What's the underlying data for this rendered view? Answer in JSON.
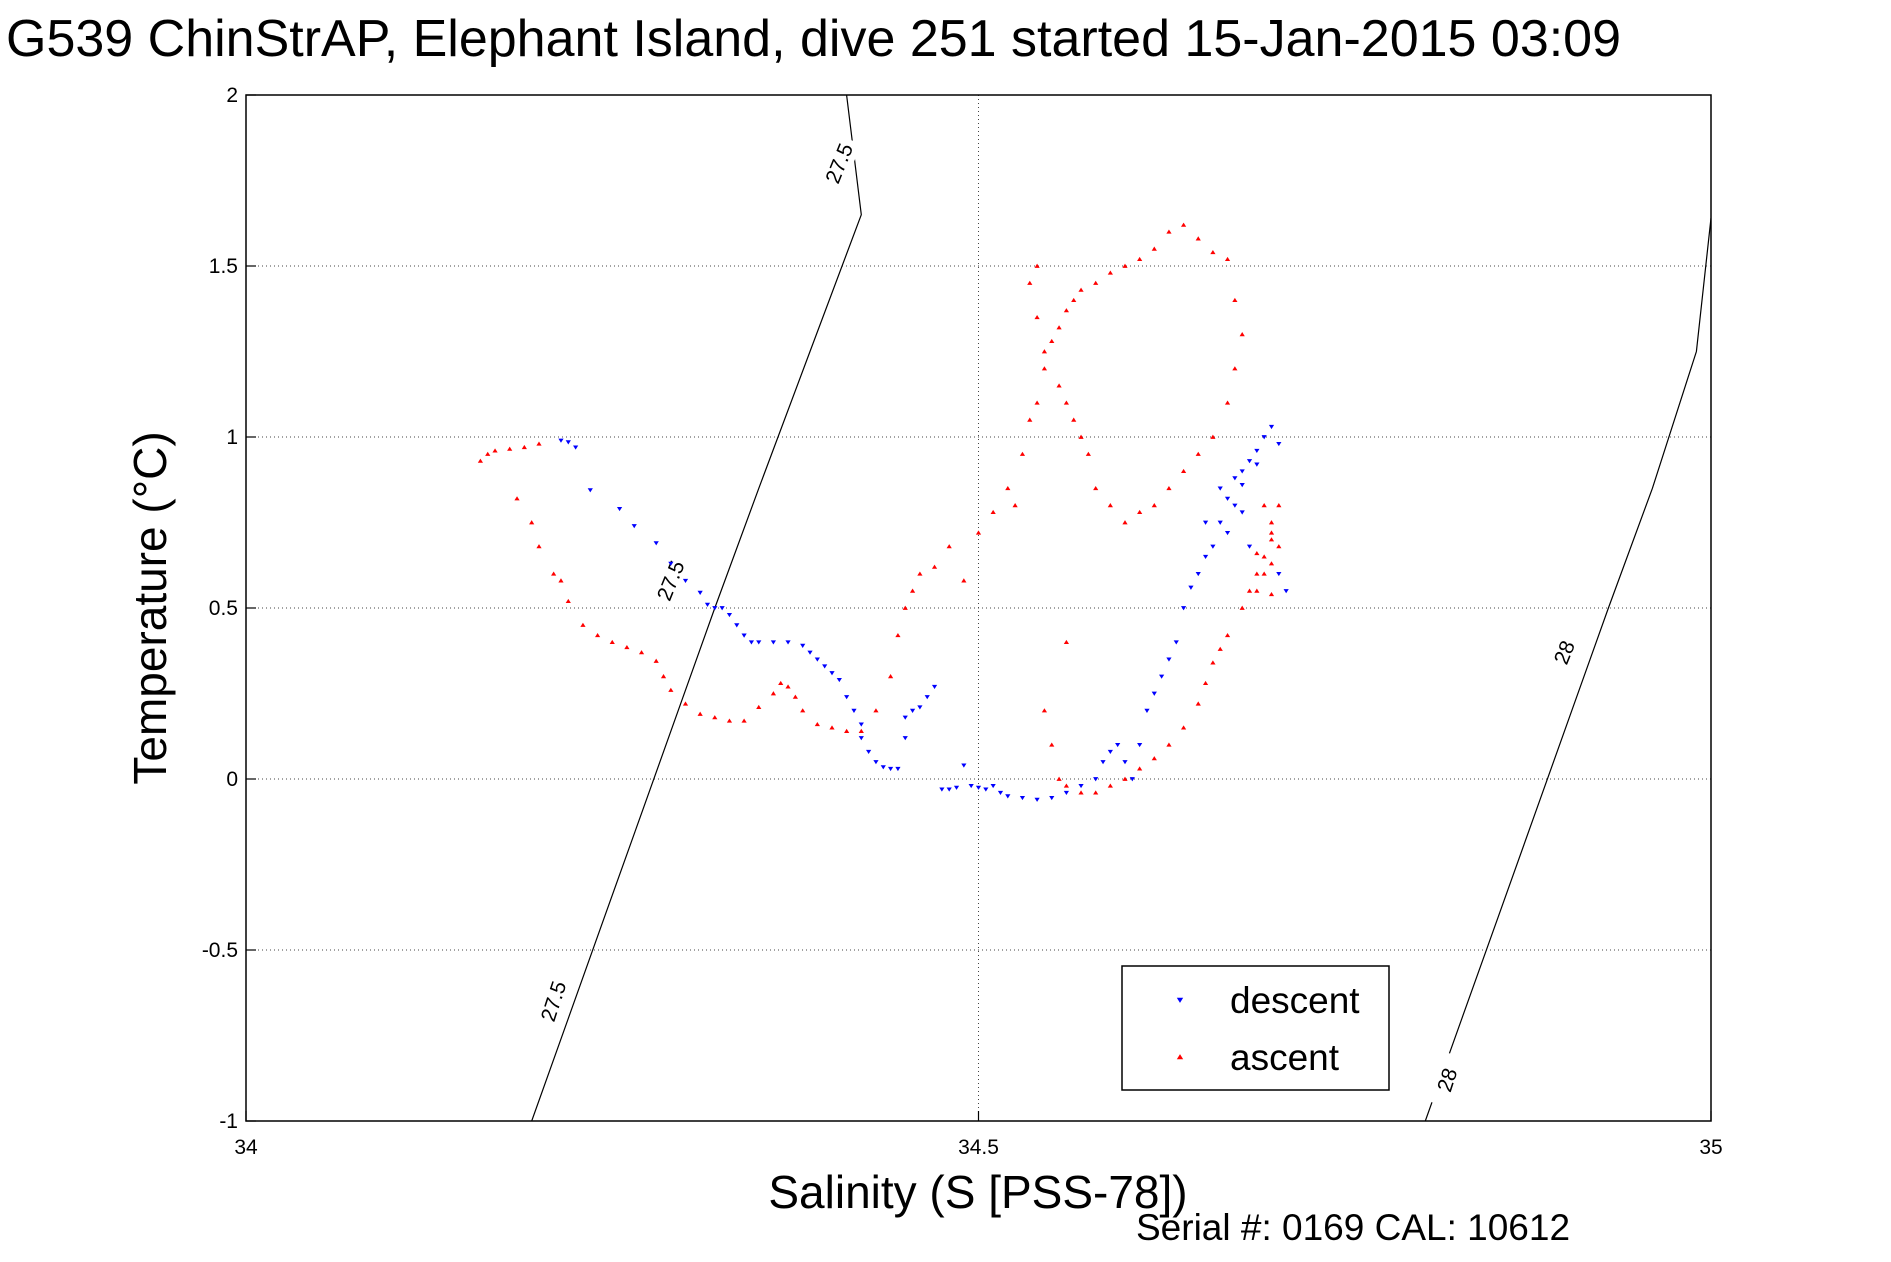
{
  "chart_data": {
    "type": "scatter",
    "title": "G539 ChinStrAP, Elephant Island, dive 251 started 15-Jan-2015 03:09",
    "xlabel": "Salinity (S [PSS-78])",
    "ylabel": "Temperature (°C)",
    "xlim": [
      34,
      35
    ],
    "ylim": [
      -1,
      2
    ],
    "xticks": [
      "34",
      "34.5",
      "35"
    ],
    "yticks": [
      "-1",
      "-0.5",
      "0",
      "0.5",
      "1",
      "1.5",
      "2"
    ],
    "grid": true,
    "legend_position": "bottom-right",
    "footer": "Serial #: 0169 CAL: 10612",
    "density_contours": [
      {
        "label": "27.5",
        "points": [
          [
            34.195,
            -1.0
          ],
          [
            34.22,
            -0.7
          ],
          [
            34.245,
            -0.4
          ],
          [
            34.27,
            -0.1
          ],
          [
            34.295,
            0.2
          ],
          [
            34.32,
            0.5
          ],
          [
            34.35,
            0.85
          ],
          [
            34.385,
            1.25
          ],
          [
            34.42,
            1.65
          ],
          [
            34.41,
            2.0
          ]
        ]
      },
      {
        "label": "28",
        "points": [
          [
            34.805,
            -1.0
          ],
          [
            34.83,
            -0.7
          ],
          [
            34.855,
            -0.4
          ],
          [
            34.88,
            -0.1
          ],
          [
            34.905,
            0.2
          ],
          [
            34.93,
            0.5
          ],
          [
            34.96,
            0.85
          ],
          [
            34.99,
            1.25
          ],
          [
            35.0,
            1.64
          ]
        ]
      }
    ],
    "contour_labels": [
      {
        "text": "27.5",
        "x": 34.405,
        "y": 1.8,
        "angle": -68
      },
      {
        "text": "27.5",
        "x": 34.29,
        "y": 0.58,
        "angle": -68
      },
      {
        "text": "27.5",
        "x": 34.21,
        "y": -0.65,
        "angle": -72
      },
      {
        "text": "28",
        "x": 34.9,
        "y": 0.37,
        "angle": -68
      },
      {
        "text": "28",
        "x": 34.82,
        "y": -0.88,
        "angle": -72
      }
    ],
    "series": [
      {
        "name": "descent",
        "color": "#0000ff",
        "marker": "triangle-down",
        "points": [
          [
            34.215,
            0.99
          ],
          [
            34.22,
            0.985
          ],
          [
            34.225,
            0.97
          ],
          [
            34.235,
            0.845
          ],
          [
            34.255,
            0.79
          ],
          [
            34.265,
            0.74
          ],
          [
            34.28,
            0.69
          ],
          [
            34.29,
            0.63
          ],
          [
            34.3,
            0.58
          ],
          [
            34.31,
            0.545
          ],
          [
            34.315,
            0.51
          ],
          [
            34.32,
            0.5
          ],
          [
            34.325,
            0.5
          ],
          [
            34.33,
            0.48
          ],
          [
            34.335,
            0.45
          ],
          [
            34.34,
            0.42
          ],
          [
            34.345,
            0.4
          ],
          [
            34.35,
            0.4
          ],
          [
            34.36,
            0.4
          ],
          [
            34.37,
            0.4
          ],
          [
            34.38,
            0.39
          ],
          [
            34.385,
            0.37
          ],
          [
            34.39,
            0.35
          ],
          [
            34.395,
            0.33
          ],
          [
            34.4,
            0.31
          ],
          [
            34.405,
            0.29
          ],
          [
            34.41,
            0.24
          ],
          [
            34.415,
            0.2
          ],
          [
            34.42,
            0.16
          ],
          [
            34.42,
            0.12
          ],
          [
            34.425,
            0.08
          ],
          [
            34.43,
            0.05
          ],
          [
            34.435,
            0.035
          ],
          [
            34.44,
            0.03
          ],
          [
            34.445,
            0.03
          ],
          [
            34.45,
            0.12
          ],
          [
            34.45,
            0.18
          ],
          [
            34.455,
            0.2
          ],
          [
            34.46,
            0.21
          ],
          [
            34.465,
            0.24
          ],
          [
            34.47,
            0.27
          ],
          [
            34.475,
            -0.03
          ],
          [
            34.48,
            -0.03
          ],
          [
            34.485,
            -0.025
          ],
          [
            34.49,
            0.04
          ],
          [
            34.495,
            -0.02
          ],
          [
            34.5,
            -0.025
          ],
          [
            34.505,
            -0.03
          ],
          [
            34.51,
            -0.02
          ],
          [
            34.515,
            -0.04
          ],
          [
            34.52,
            -0.05
          ],
          [
            34.53,
            -0.055
          ],
          [
            34.54,
            -0.06
          ],
          [
            34.55,
            -0.055
          ],
          [
            34.56,
            -0.04
          ],
          [
            34.57,
            -0.02
          ],
          [
            34.58,
            0.0
          ],
          [
            34.585,
            0.05
          ],
          [
            34.59,
            0.08
          ],
          [
            34.595,
            0.1
          ],
          [
            34.6,
            0.05
          ],
          [
            34.605,
            0.0
          ],
          [
            34.61,
            0.1
          ],
          [
            34.615,
            0.2
          ],
          [
            34.62,
            0.25
          ],
          [
            34.625,
            0.3
          ],
          [
            34.63,
            0.35
          ],
          [
            34.635,
            0.4
          ],
          [
            34.64,
            0.5
          ],
          [
            34.645,
            0.56
          ],
          [
            34.65,
            0.6
          ],
          [
            34.655,
            0.65
          ],
          [
            34.66,
            0.68
          ],
          [
            34.665,
            0.75
          ],
          [
            34.67,
            0.82
          ],
          [
            34.675,
            0.88
          ],
          [
            34.68,
            0.9
          ],
          [
            34.685,
            0.93
          ],
          [
            34.69,
            0.96
          ],
          [
            34.695,
            1.0
          ],
          [
            34.7,
            1.03
          ],
          [
            34.705,
            0.6
          ],
          [
            34.71,
            0.55
          ],
          [
            34.705,
            0.98
          ],
          [
            34.69,
            0.92
          ],
          [
            34.68,
            0.86
          ],
          [
            34.675,
            0.8
          ],
          [
            34.665,
            0.85
          ],
          [
            34.655,
            0.75
          ],
          [
            34.67,
            0.72
          ],
          [
            34.685,
            0.68
          ],
          [
            34.68,
            0.78
          ]
        ]
      },
      {
        "name": "ascent",
        "color": "#ff0000",
        "marker": "triangle-up",
        "points": [
          [
            34.16,
            0.93
          ],
          [
            34.165,
            0.95
          ],
          [
            34.17,
            0.96
          ],
          [
            34.18,
            0.965
          ],
          [
            34.19,
            0.97
          ],
          [
            34.2,
            0.98
          ],
          [
            34.185,
            0.82
          ],
          [
            34.195,
            0.75
          ],
          [
            34.2,
            0.68
          ],
          [
            34.21,
            0.6
          ],
          [
            34.215,
            0.58
          ],
          [
            34.22,
            0.52
          ],
          [
            34.23,
            0.45
          ],
          [
            34.24,
            0.42
          ],
          [
            34.25,
            0.4
          ],
          [
            34.26,
            0.385
          ],
          [
            34.27,
            0.37
          ],
          [
            34.28,
            0.345
          ],
          [
            34.285,
            0.3
          ],
          [
            34.29,
            0.26
          ],
          [
            34.3,
            0.22
          ],
          [
            34.31,
            0.19
          ],
          [
            34.32,
            0.18
          ],
          [
            34.33,
            0.17
          ],
          [
            34.34,
            0.17
          ],
          [
            34.35,
            0.21
          ],
          [
            34.36,
            0.25
          ],
          [
            34.365,
            0.28
          ],
          [
            34.37,
            0.27
          ],
          [
            34.375,
            0.24
          ],
          [
            34.38,
            0.2
          ],
          [
            34.39,
            0.16
          ],
          [
            34.4,
            0.15
          ],
          [
            34.41,
            0.14
          ],
          [
            34.42,
            0.14
          ],
          [
            34.43,
            0.2
          ],
          [
            34.44,
            0.3
          ],
          [
            34.445,
            0.42
          ],
          [
            34.45,
            0.5
          ],
          [
            34.455,
            0.55
          ],
          [
            34.46,
            0.6
          ],
          [
            34.47,
            0.62
          ],
          [
            34.48,
            0.68
          ],
          [
            34.49,
            0.58
          ],
          [
            34.5,
            0.72
          ],
          [
            34.51,
            0.78
          ],
          [
            34.52,
            0.85
          ],
          [
            34.525,
            0.8
          ],
          [
            34.53,
            0.95
          ],
          [
            34.535,
            1.05
          ],
          [
            34.54,
            1.1
          ],
          [
            34.545,
            1.2
          ],
          [
            34.55,
            1.28
          ],
          [
            34.555,
            1.32
          ],
          [
            34.56,
            1.37
          ],
          [
            34.565,
            1.4
          ],
          [
            34.57,
            1.43
          ],
          [
            34.58,
            1.45
          ],
          [
            34.59,
            1.48
          ],
          [
            34.6,
            1.5
          ],
          [
            34.61,
            1.52
          ],
          [
            34.62,
            1.55
          ],
          [
            34.63,
            1.6
          ],
          [
            34.64,
            1.62
          ],
          [
            34.65,
            1.58
          ],
          [
            34.66,
            1.54
          ],
          [
            34.67,
            1.52
          ],
          [
            34.675,
            1.4
          ],
          [
            34.68,
            1.3
          ],
          [
            34.675,
            1.2
          ],
          [
            34.67,
            1.1
          ],
          [
            34.66,
            1.0
          ],
          [
            34.65,
            0.95
          ],
          [
            34.64,
            0.9
          ],
          [
            34.63,
            0.85
          ],
          [
            34.62,
            0.8
          ],
          [
            34.61,
            0.78
          ],
          [
            34.6,
            0.75
          ],
          [
            34.59,
            0.8
          ],
          [
            34.58,
            0.85
          ],
          [
            34.575,
            0.95
          ],
          [
            34.57,
            1.0
          ],
          [
            34.565,
            1.05
          ],
          [
            34.56,
            1.1
          ],
          [
            34.555,
            1.15
          ],
          [
            34.545,
            1.25
          ],
          [
            34.54,
            1.35
          ],
          [
            34.535,
            1.45
          ],
          [
            34.54,
            1.5
          ],
          [
            34.56,
            0.4
          ],
          [
            34.545,
            0.2
          ],
          [
            34.55,
            0.1
          ],
          [
            34.555,
            0.0
          ],
          [
            34.56,
            -0.02
          ],
          [
            34.57,
            -0.04
          ],
          [
            34.58,
            -0.04
          ],
          [
            34.59,
            -0.02
          ],
          [
            34.6,
            0.0
          ],
          [
            34.61,
            0.03
          ],
          [
            34.62,
            0.06
          ],
          [
            34.63,
            0.1
          ],
          [
            34.64,
            0.15
          ],
          [
            34.65,
            0.22
          ],
          [
            34.655,
            0.28
          ],
          [
            34.66,
            0.34
          ],
          [
            34.665,
            0.38
          ],
          [
            34.67,
            0.42
          ],
          [
            34.68,
            0.5
          ],
          [
            34.685,
            0.55
          ],
          [
            34.69,
            0.6
          ],
          [
            34.695,
            0.65
          ],
          [
            34.7,
            0.7
          ],
          [
            34.7,
            0.75
          ],
          [
            34.705,
            0.8
          ],
          [
            34.7,
            0.72
          ],
          [
            34.695,
            0.6
          ],
          [
            34.69,
            0.55
          ],
          [
            34.7,
            0.54
          ],
          [
            34.705,
            0.68
          ],
          [
            34.7,
            0.63
          ],
          [
            34.695,
            0.8
          ],
          [
            34.69,
            0.66
          ]
        ]
      }
    ]
  }
}
